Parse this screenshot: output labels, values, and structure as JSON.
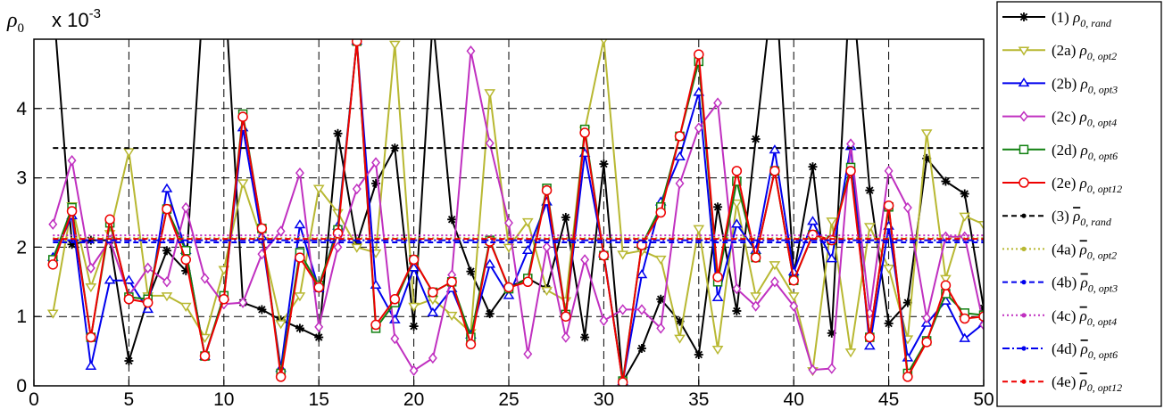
{
  "chart_data": {
    "type": "line",
    "ylabel": "ρ",
    "ylabel_sub": "0",
    "y_multiplier": "x 10",
    "y_multiplier_exp": "-3",
    "xlim": [
      0,
      50
    ],
    "ylim": [
      0,
      5
    ],
    "xticks": [
      0,
      5,
      10,
      15,
      20,
      25,
      30,
      35,
      40,
      45,
      50
    ],
    "yticks": [
      0,
      1,
      2,
      3,
      4
    ],
    "grid": true,
    "legend_position": "right-outside",
    "x": [
      1,
      2,
      3,
      4,
      5,
      6,
      7,
      8,
      9,
      10,
      11,
      12,
      13,
      14,
      15,
      16,
      17,
      18,
      19,
      20,
      21,
      22,
      23,
      24,
      25,
      26,
      27,
      28,
      29,
      30,
      31,
      32,
      33,
      34,
      35,
      36,
      37,
      38,
      39,
      40,
      41,
      42,
      43,
      44,
      45,
      46,
      47,
      48,
      49,
      50
    ],
    "series": [
      {
        "name": "(1)",
        "sym": "ρ",
        "sub": "0, rand",
        "bar": false,
        "color": "#000000",
        "marker": "star",
        "dash": "",
        "lw": 2,
        "values": [
          5.6,
          2.04,
          2.1,
          2.1,
          0.36,
          1.25,
          1.95,
          1.66,
          6.0,
          6.0,
          1.2,
          1.1,
          0.95,
          0.83,
          0.7,
          3.64,
          2.05,
          2.92,
          3.43,
          0.86,
          5.3,
          2.4,
          1.65,
          1.04,
          1.42,
          1.55,
          1.4,
          2.43,
          0.7,
          3.2,
          0.06,
          0.54,
          1.25,
          0.93,
          0.45,
          2.58,
          1.08,
          3.56,
          6.0,
          1.6,
          3.16,
          0.76,
          6.0,
          2.82,
          0.9,
          1.2,
          3.28,
          2.95,
          2.77,
          1.12
        ]
      },
      {
        "name": "(2a)",
        "sym": "ρ",
        "sub": "0, opt2",
        "bar": false,
        "color": "#b8b832",
        "marker": "tri-down",
        "dash": "",
        "lw": 2,
        "values": [
          1.05,
          2.6,
          1.43,
          2.2,
          3.38,
          1.3,
          1.3,
          1.15,
          0.7,
          1.68,
          2.93,
          2.1,
          0.9,
          1.3,
          2.85,
          2.5,
          2.0,
          1.92,
          4.93,
          1.15,
          1.25,
          1.02,
          0.77,
          4.23,
          2.0,
          2.37,
          1.38,
          1.23,
          3.69,
          5.0,
          1.9,
          1.95,
          1.83,
          0.69,
          2.27,
          0.53,
          2.64,
          1.3,
          1.75,
          1.3,
          0.22,
          2.38,
          0.49,
          2.3,
          1.7,
          0.68,
          3.65,
          1.55,
          2.45,
          2.33
        ]
      },
      {
        "name": "(2b)",
        "sym": "ρ",
        "sub": "0, opt3",
        "bar": false,
        "color": "#0000ee",
        "marker": "tri-up",
        "dash": "",
        "lw": 2,
        "values": [
          1.85,
          2.45,
          0.28,
          1.52,
          1.52,
          1.1,
          2.84,
          1.95,
          0.42,
          1.28,
          3.72,
          2.15,
          0.25,
          2.32,
          1.4,
          2.3,
          4.97,
          1.45,
          0.95,
          1.7,
          1.05,
          1.4,
          0.73,
          1.75,
          1.3,
          1.95,
          2.65,
          1.03,
          3.35,
          1.9,
          0.06,
          1.6,
          2.65,
          3.3,
          4.23,
          1.27,
          2.33,
          1.95,
          3.4,
          1.64,
          2.37,
          1.83,
          3.45,
          0.57,
          2.3,
          0.4,
          0.9,
          1.22,
          0.68,
          0.9
        ]
      },
      {
        "name": "(2c)",
        "sym": "ρ",
        "sub": "0, opt4",
        "bar": false,
        "color": "#c030c0",
        "marker": "diamond",
        "dash": "",
        "lw": 2,
        "values": [
          2.33,
          3.25,
          1.7,
          2.1,
          1.3,
          1.7,
          1.5,
          2.57,
          1.55,
          1.18,
          1.2,
          1.9,
          2.23,
          3.07,
          0.85,
          2.0,
          2.84,
          3.22,
          0.68,
          0.22,
          0.4,
          1.6,
          4.83,
          3.5,
          2.35,
          0.46,
          2.0,
          0.7,
          1.82,
          0.94,
          1.1,
          1.1,
          0.83,
          2.92,
          3.72,
          4.08,
          1.4,
          1.15,
          1.5,
          1.15,
          0.23,
          0.25,
          3.49,
          1.05,
          3.1,
          2.57,
          0.98,
          2.15,
          2.15,
          0.88
        ]
      },
      {
        "name": "(2d)",
        "sym": "ρ",
        "sub": "0, opt6",
        "bar": false,
        "color": "#108010",
        "marker": "square",
        "dash": "",
        "lw": 2,
        "values": [
          1.82,
          2.57,
          0.7,
          2.35,
          1.28,
          1.25,
          2.55,
          1.95,
          0.43,
          1.3,
          3.92,
          2.27,
          0.18,
          1.92,
          1.45,
          2.25,
          4.97,
          0.83,
          1.2,
          1.82,
          1.35,
          1.5,
          0.7,
          2.1,
          1.4,
          1.55,
          2.85,
          1.03,
          3.7,
          1.88,
          0.07,
          2.03,
          2.58,
          3.6,
          4.68,
          1.5,
          2.95,
          1.85,
          3.1,
          1.52,
          2.18,
          2.1,
          3.15,
          0.7,
          2.58,
          0.18,
          0.65,
          1.33,
          1.05,
          1.02
        ]
      },
      {
        "name": "(2e)",
        "sym": "ρ",
        "sub": "0, opt12",
        "bar": false,
        "color": "#ee0000",
        "marker": "circle",
        "dash": "",
        "lw": 2,
        "values": [
          1.75,
          2.52,
          0.7,
          2.4,
          1.25,
          1.2,
          2.55,
          1.82,
          0.43,
          1.25,
          3.88,
          2.27,
          0.13,
          1.85,
          1.42,
          2.2,
          4.97,
          0.88,
          1.25,
          1.82,
          1.35,
          1.5,
          0.6,
          2.08,
          1.42,
          1.5,
          2.82,
          1.0,
          3.65,
          1.88,
          0.05,
          2.03,
          2.5,
          3.6,
          4.78,
          1.57,
          3.1,
          1.85,
          3.1,
          1.52,
          2.18,
          2.1,
          3.1,
          0.7,
          2.6,
          0.13,
          0.63,
          1.45,
          0.97,
          1.0
        ]
      },
      {
        "name": "(3)",
        "sym": "ρ",
        "sub": "0, rand",
        "bar": true,
        "color": "#000000",
        "marker": "dot",
        "dash": "6,4",
        "lw": 2,
        "const": 3.43
      },
      {
        "name": "(4a)",
        "sym": "ρ",
        "sub": "0, opt2",
        "bar": true,
        "color": "#b8b832",
        "marker": "dot",
        "dash": "2,3",
        "lw": 2,
        "const": 2.13
      },
      {
        "name": "(4b)",
        "sym": "ρ",
        "sub": "0, opt3",
        "bar": true,
        "color": "#0000ee",
        "marker": "dot",
        "dash": "6,4",
        "lw": 2,
        "const": 2.07
      },
      {
        "name": "(4c)",
        "sym": "ρ",
        "sub": "0, opt4",
        "bar": true,
        "color": "#c030c0",
        "marker": "dot",
        "dash": "2,3",
        "lw": 2,
        "const": 2.17
      },
      {
        "name": "(4d)",
        "sym": "ρ",
        "sub": "0, opt6",
        "bar": true,
        "color": "#0000ee",
        "marker": "dot",
        "dash": "8,3,2,3",
        "lw": 2,
        "const": 2.1
      },
      {
        "name": "(4e)",
        "sym": "ρ",
        "sub": "0, opt12",
        "bar": true,
        "color": "#ee0000",
        "marker": "dot",
        "dash": "6,4",
        "lw": 2,
        "const": 2.12
      }
    ]
  }
}
